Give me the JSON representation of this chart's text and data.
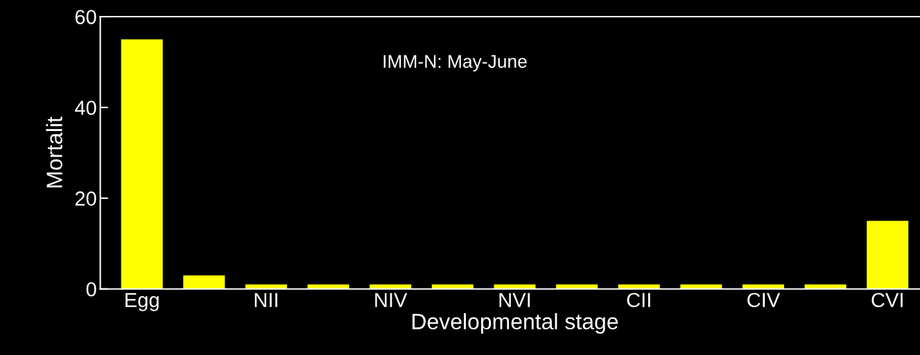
{
  "chart_data": {
    "type": "bar",
    "xlabel": "Developmental stage",
    "ylabel": "Mortalit",
    "categories": [
      "Egg",
      null,
      "NII",
      null,
      "NIV",
      null,
      "NVI",
      null,
      "CII",
      null,
      "CIV",
      null,
      "CVI"
    ],
    "values": [
      55,
      3,
      1,
      1,
      1,
      1,
      1,
      1,
      1,
      1,
      1,
      1,
      15
    ],
    "color": "#ffff00",
    "ylim": [
      0,
      60
    ],
    "yticks": [
      0,
      20,
      40,
      60
    ],
    "grid": false,
    "annotations": [
      "IMM-N: May-June"
    ]
  }
}
